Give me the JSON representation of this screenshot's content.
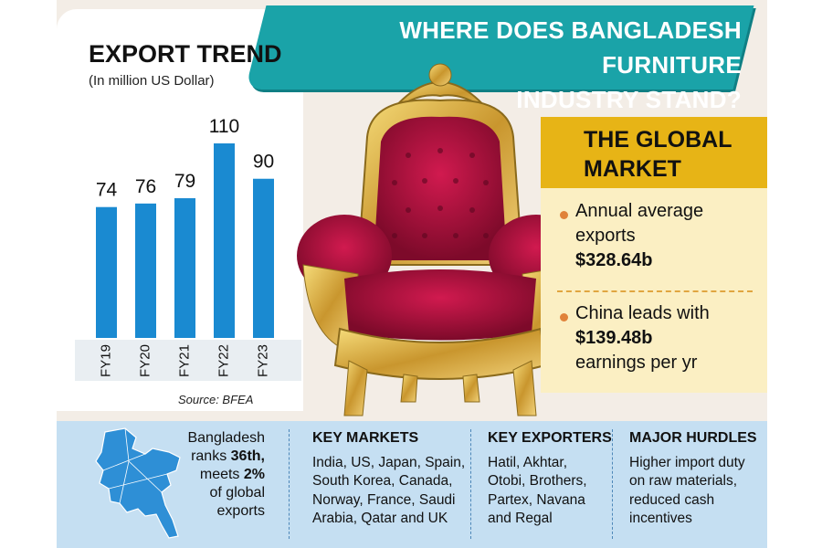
{
  "header": {
    "title_line1": "WHERE DOES BANGLADESH FURNITURE",
    "title_line2": "INDUSTRY STAND?"
  },
  "export_trend": {
    "title": "EXPORT TREND",
    "subtitle": "(In million US Dollar)",
    "source": "Source: BFEA"
  },
  "chart_data": {
    "type": "bar",
    "title": "EXPORT TREND",
    "subtitle": "(In million US Dollar)",
    "categories": [
      "FY19",
      "FY20",
      "FY21",
      "FY22",
      "FY23"
    ],
    "values": [
      74,
      76,
      79,
      110,
      90
    ],
    "ylim": [
      0,
      110
    ],
    "grid": false,
    "bar_color": "#1a8ad1"
  },
  "global_market": {
    "heading_line1": "THE GLOBAL",
    "heading_line2": "MARKET",
    "item1_line1": "Annual average",
    "item1_line2": "exports",
    "item1_value": "$328.64b",
    "item2_line1": "China leads with",
    "item2_value": "$139.48b",
    "item2_line3": "earnings per yr"
  },
  "bottom": {
    "rank_line1": "Bangladesh",
    "rank_pre": "ranks ",
    "rank_value": "36th,",
    "meets_pre": "meets ",
    "meets_value": "2%",
    "rank_line4": "of global",
    "rank_line5": "exports",
    "markets_head": "KEY MARKETS",
    "markets_lines": [
      "India, US, Japan, Spain,",
      "South Korea, Canada,",
      "Norway, France, Saudi",
      "Arabia, Qatar and UK"
    ],
    "exporters_head": "KEY EXPORTERS",
    "exporters_lines": [
      "Hatil, Akhtar,",
      "Otobi, Brothers,",
      "Partex, Navana",
      "and Regal"
    ],
    "hurdles_head": "MAJOR HURDLES",
    "hurdles_lines": [
      "Higher import duty",
      "on raw materials,",
      "reduced cash",
      "incentives"
    ]
  },
  "colors": {
    "teal": "#1aa3a8",
    "gold": "#e7b416",
    "cream": "#fbefc3",
    "light_blue": "#c5dff2",
    "bar_blue": "#1a8ad1",
    "chair_red": "#b3123f"
  }
}
